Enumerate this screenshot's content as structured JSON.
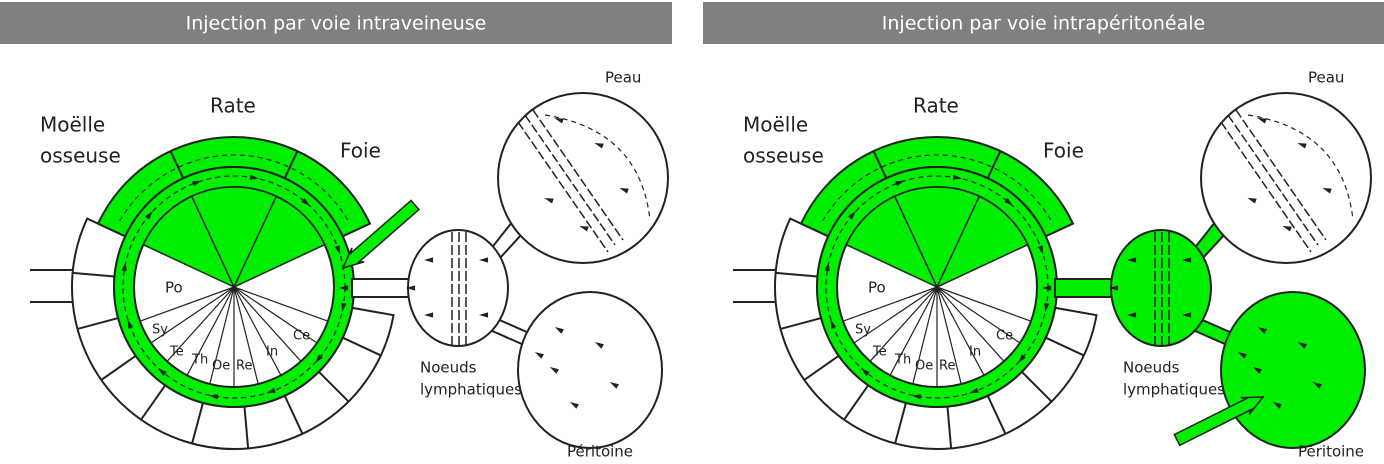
{
  "panels": [
    {
      "title": "Injection par voie intraveineuse",
      "marrow": [
        "Moëlle",
        "osseuse"
      ],
      "spleen": "Rate",
      "liver": "Foie",
      "skin": "Peau",
      "lymph": [
        "Noeuds",
        "lymphatiques"
      ],
      "peritoneum": "Péritoine",
      "sectors": [
        "Po",
        "Sy",
        "Te",
        "Th",
        "Oe",
        "Re",
        "In",
        "Ce"
      ]
    },
    {
      "title": "Injection par voie intrapéritonéale",
      "marrow": [
        "Moëlle",
        "osseuse"
      ],
      "spleen": "Rate",
      "liver": "Foie",
      "skin": "Peau",
      "lymph": [
        "Noeuds",
        "lymphatiques"
      ],
      "peritoneum": "Péritoine",
      "sectors": [
        "Po",
        "Sy",
        "Te",
        "Th",
        "Oe",
        "Re",
        "In",
        "Ce"
      ]
    }
  ]
}
